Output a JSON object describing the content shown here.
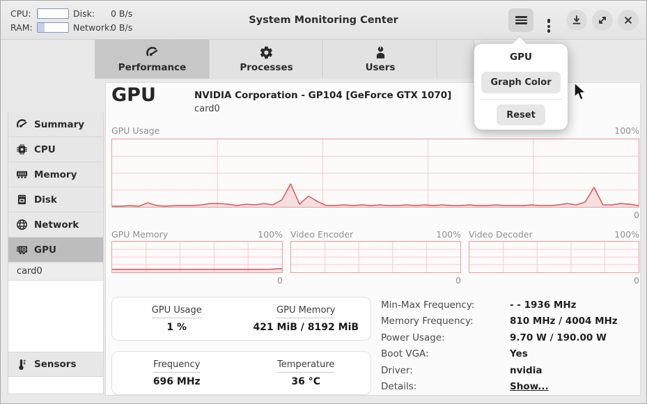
{
  "header": {
    "title": "System Monitoring Center",
    "stats": {
      "cpu_label": "CPU:",
      "ram_label": "RAM:",
      "disk_label": "Disk:",
      "disk_value": "0 B/s",
      "network_label": "Network:",
      "network_value": "0 B/s",
      "cpu_percent": 2,
      "ram_percent": 22
    }
  },
  "tabs": [
    {
      "label": "Performance",
      "icon": "gauge-icon",
      "active": true
    },
    {
      "label": "Processes",
      "icon": "gear-icon",
      "active": false
    },
    {
      "label": "Users",
      "icon": "user-icon",
      "active": false
    }
  ],
  "sidebar": {
    "items": [
      {
        "label": "Summary",
        "icon": "gauge-icon"
      },
      {
        "label": "CPU",
        "icon": "cpu-chip-icon"
      },
      {
        "label": "Memory",
        "icon": "ram-icon"
      },
      {
        "label": "Disk",
        "icon": "disk-icon"
      },
      {
        "label": "Network",
        "icon": "globe-icon"
      },
      {
        "label": "GPU",
        "icon": "gpu-card-icon",
        "selected": true
      }
    ],
    "sub_item": "card0",
    "sensors_label": "Sensors",
    "sensors_icon": "thermometer-icon"
  },
  "menu_popup": {
    "title": "GPU",
    "graph_color_label": "Graph Color",
    "reset_label": "Reset"
  },
  "main": {
    "page_title": "GPU",
    "device_name": "NVIDIA Corporation - GP104 [GeForce GTX 1070]",
    "device_id": "card0",
    "stat_cards": [
      {
        "items": [
          {
            "label": "GPU Usage",
            "value": "1 %"
          },
          {
            "label": "GPU Memory",
            "value": "421 MiB / 8192 MiB"
          }
        ]
      },
      {
        "items": [
          {
            "label": "Frequency",
            "value": "696 MHz"
          },
          {
            "label": "Temperature",
            "value": "36 °C"
          }
        ]
      }
    ],
    "details": [
      {
        "label": "Min-Max Frequency:",
        "value": "- - 1936 MHz"
      },
      {
        "label": "Memory Frequency:",
        "value": "810 MHz / 4004 MHz"
      },
      {
        "label": "Power Usage:",
        "value": "9.70 W / 190.00 W"
      },
      {
        "label": "Boot VGA:",
        "value": "Yes"
      },
      {
        "label": "Driver:",
        "value": "nvidia"
      },
      {
        "label": "Details:",
        "value": "Show...",
        "link": true
      }
    ]
  },
  "chart_data": [
    {
      "type": "area",
      "title": "GPU Usage",
      "max_label": "100%",
      "min_label": "0",
      "ylim": [
        0,
        100
      ],
      "grid": {
        "v_divisions": 5,
        "h_divisions": 4
      },
      "values": [
        1,
        1,
        2,
        1,
        6,
        2,
        1,
        2,
        2,
        2,
        3,
        5,
        5,
        4,
        2,
        4,
        3,
        5,
        3,
        10,
        34,
        4,
        16,
        8,
        2,
        2,
        3,
        2,
        3,
        2,
        3,
        2,
        2,
        3,
        2,
        3,
        2,
        3,
        2,
        2,
        3,
        2,
        2,
        3,
        2,
        2,
        2,
        3,
        2,
        2,
        3,
        5,
        3,
        7,
        29,
        3,
        3,
        5,
        4,
        2
      ]
    },
    {
      "type": "area",
      "title": "GPU Memory",
      "max_label": "100%",
      "min_label": "0",
      "ylim": [
        0,
        100
      ],
      "grid": {
        "v_divisions": 5,
        "h_divisions": 4
      },
      "values": [
        10,
        10,
        10,
        10,
        10,
        10,
        10,
        10,
        10,
        10,
        10,
        10,
        10,
        10,
        10,
        10,
        10,
        10,
        10,
        10,
        10,
        10,
        10,
        10,
        10,
        10,
        10,
        10,
        12,
        12
      ]
    },
    {
      "type": "area",
      "title": "Video Encoder",
      "max_label": "100%",
      "min_label": "0",
      "ylim": [
        0,
        100
      ],
      "grid": {
        "v_divisions": 5,
        "h_divisions": 4
      },
      "values": [
        0,
        0,
        0,
        0,
        0,
        0,
        0,
        0,
        0,
        0,
        0,
        0,
        0,
        0,
        0,
        0,
        0,
        0,
        0,
        0,
        0,
        0,
        0,
        0,
        0,
        0,
        0,
        0,
        0,
        0
      ]
    },
    {
      "type": "area",
      "title": "Video Decoder",
      "max_label": "100%",
      "min_label": "0",
      "ylim": [
        0,
        100
      ],
      "grid": {
        "v_divisions": 5,
        "h_divisions": 4
      },
      "values": [
        0,
        0,
        0,
        0,
        0,
        0,
        0,
        0,
        0,
        0,
        0,
        0,
        0,
        0,
        0,
        0,
        0,
        0,
        0,
        0,
        0,
        0,
        0,
        0,
        0,
        0,
        0,
        0,
        0,
        0
      ]
    }
  ],
  "colors": {
    "chart_line": "#dc5454",
    "chart_fill_opacity": "0.16",
    "chart_grid": "#f5caca",
    "chart_border": "#e39c9c",
    "progress_fill": "#c3cfec",
    "progress_border": "#8494c0"
  }
}
